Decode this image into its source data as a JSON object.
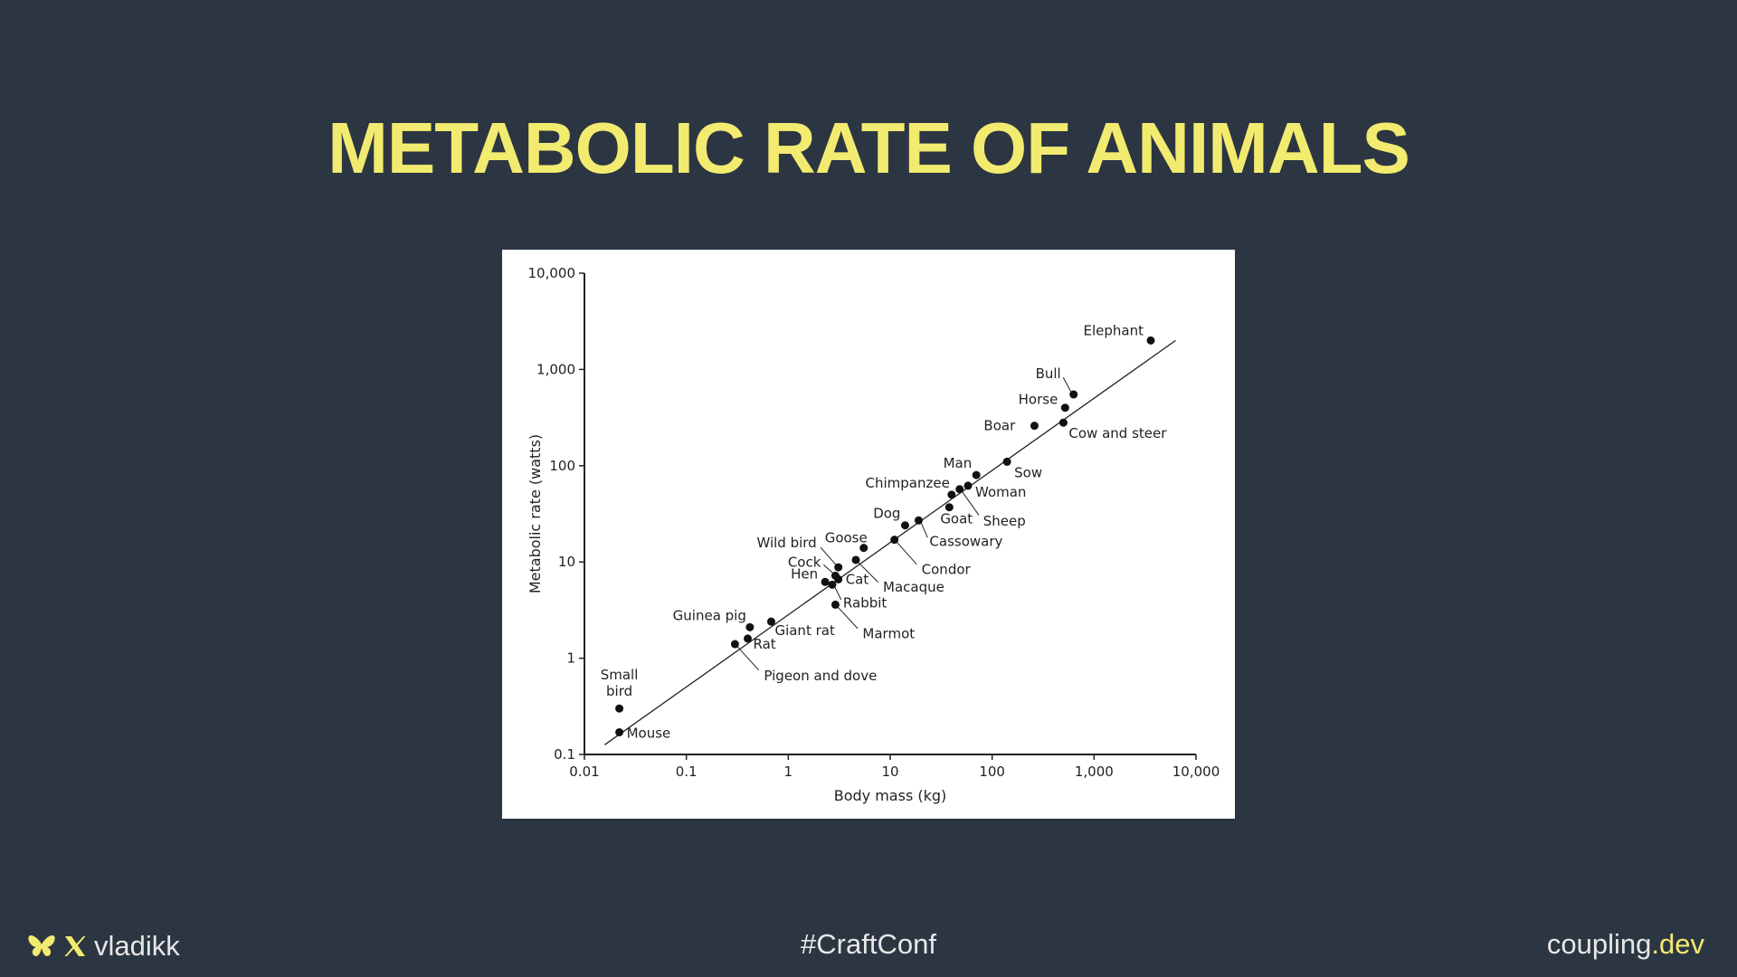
{
  "slide": {
    "title": "METABOLIC RATE OF ANIMALS"
  },
  "footer": {
    "handle": "vladikk",
    "hashtag": "#CraftConf",
    "site_main": "coupling",
    "site_accent": ".dev",
    "icons": [
      "butterfly-icon",
      "x-logo-icon"
    ]
  },
  "colors": {
    "background": "#2c3643",
    "accent": "#f3eb6f",
    "footer_text": "#e7e7e7",
    "chart_background": "#ffffff",
    "chart_ink": "#222222"
  },
  "chart_data": {
    "type": "scatter",
    "xlabel": "Body mass (kg)",
    "ylabel": "Metabolic rate (watts)",
    "xscale": "log",
    "yscale": "log",
    "xlim": [
      0.01,
      10000
    ],
    "ylim": [
      0.1,
      10000
    ],
    "xticks": [
      {
        "value": 0.01,
        "label": "0.01"
      },
      {
        "value": 0.1,
        "label": "0.1"
      },
      {
        "value": 1,
        "label": "1"
      },
      {
        "value": 10,
        "label": "10"
      },
      {
        "value": 100,
        "label": "100"
      },
      {
        "value": 1000,
        "label": "1,000"
      },
      {
        "value": 10000,
        "label": "10,000"
      }
    ],
    "yticks": [
      {
        "value": 0.1,
        "label": "0.1"
      },
      {
        "value": 1,
        "label": "1"
      },
      {
        "value": 10,
        "label": "10"
      },
      {
        "value": 100,
        "label": "100"
      },
      {
        "value": 1000,
        "label": "1,000"
      },
      {
        "value": 10000,
        "label": "10,000"
      }
    ],
    "grid": false,
    "fit_line": {
      "x": [
        0.0158,
        6310
      ],
      "y": [
        0.126,
        2000
      ]
    },
    "points": [
      {
        "label": "Elephant",
        "x": 3600,
        "y": 2000
      },
      {
        "label": "Bull",
        "x": 630,
        "y": 550
      },
      {
        "label": "Horse",
        "x": 520,
        "y": 400
      },
      {
        "label": "Boar",
        "x": 260,
        "y": 260
      },
      {
        "label": "Cow and steer",
        "x": 500,
        "y": 280
      },
      {
        "label": "Sow",
        "x": 140,
        "y": 110
      },
      {
        "label": "Man",
        "x": 70,
        "y": 80
      },
      {
        "label": "Woman",
        "x": 58,
        "y": 62
      },
      {
        "label": "Chimpanzee",
        "x": 40,
        "y": 50
      },
      {
        "label": "Sheep",
        "x": 48,
        "y": 57
      },
      {
        "label": "Goat",
        "x": 38,
        "y": 37
      },
      {
        "label": "Dog",
        "x": 14,
        "y": 24
      },
      {
        "label": "Cassowary",
        "x": 19,
        "y": 27
      },
      {
        "label": "Condor",
        "x": 11,
        "y": 17
      },
      {
        "label": "Goose",
        "x": 5.5,
        "y": 14
      },
      {
        "label": "Wild bird",
        "x": 3.1,
        "y": 8.8
      },
      {
        "label": "Macaque",
        "x": 4.6,
        "y": 10.5
      },
      {
        "label": "Cock",
        "x": 2.9,
        "y": 7.2
      },
      {
        "label": "Hen",
        "x": 2.3,
        "y": 6.2
      },
      {
        "label": "Cat",
        "x": 3.1,
        "y": 6.6
      },
      {
        "label": "Rabbit",
        "x": 2.7,
        "y": 5.8
      },
      {
        "label": "Marmot",
        "x": 2.9,
        "y": 3.6
      },
      {
        "label": "Guinea pig",
        "x": 0.42,
        "y": 2.1
      },
      {
        "label": "Giant rat",
        "x": 0.68,
        "y": 2.4
      },
      {
        "label": "Rat",
        "x": 0.4,
        "y": 1.6
      },
      {
        "label": "Pigeon and dove",
        "x": 0.3,
        "y": 1.4
      },
      {
        "label": "Small bird",
        "x": 0.022,
        "y": 0.3
      },
      {
        "label": "Mouse",
        "x": 0.022,
        "y": 0.17
      }
    ]
  }
}
